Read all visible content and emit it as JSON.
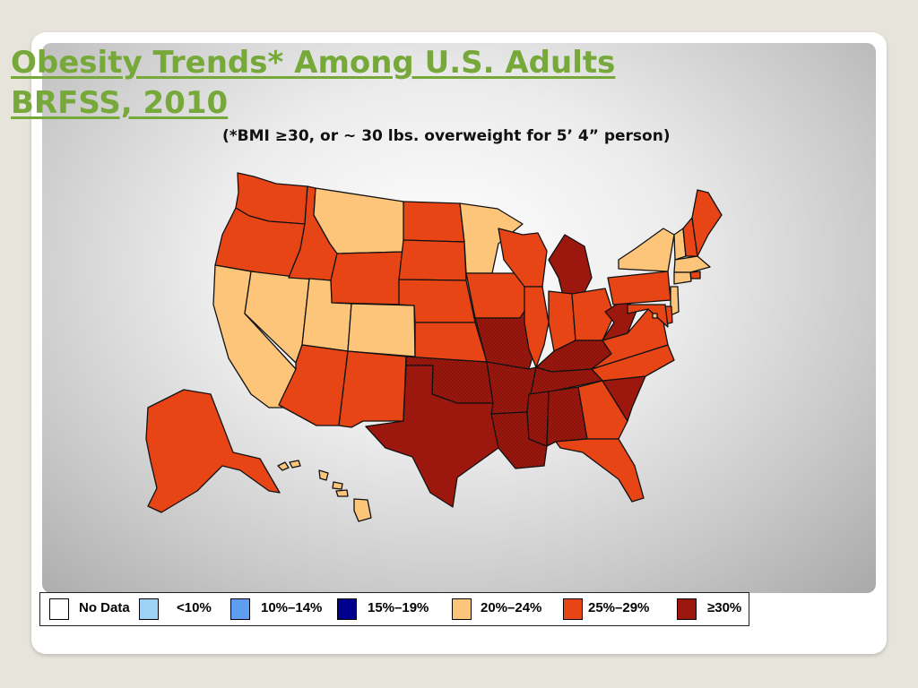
{
  "title": {
    "line1": "Obesity Trends* Among U.S. Adults",
    "line2": "BRFSS, 2010"
  },
  "subtitle": "(*BMI ≥30, or ~ 30 lbs. overweight for 5’ 4” person)",
  "legend": [
    {
      "label": "No Data",
      "color": "#ffffff"
    },
    {
      "label": "<10%",
      "color": "#9dd2f5"
    },
    {
      "label": "10%–14%",
      "color": "#5d9ef0"
    },
    {
      "label": "15%–19%",
      "color": "#00008f"
    },
    {
      "label": "20%–24%",
      "color": "#fdc57a"
    },
    {
      "label": "25%–29%",
      "color": "#e84516"
    },
    {
      "label": "≥30%",
      "color": "#9c180e"
    }
  ],
  "colors": {
    "title": "#76a83a",
    "border": "#111111"
  },
  "map": {
    "states": {
      "AL": "≥30%",
      "AK": "25%–29%",
      "AZ": "25%–29%",
      "AR": "≥30%",
      "CA": "20%–24%",
      "CO": "20%–24%",
      "CT": "20%–24%",
      "DE": "25%–29%",
      "DC": "20%–24%",
      "FL": "25%–29%",
      "GA": "25%–29%",
      "HI": "20%–24%",
      "ID": "25%–29%",
      "IL": "25%–29%",
      "IN": "25%–29%",
      "IA": "25%–29%",
      "KS": "25%–29%",
      "KY": "≥30%",
      "LA": "≥30%",
      "ME": "25%–29%",
      "MD": "25%–29%",
      "MA": "20%–24%",
      "MI": "≥30%",
      "MN": "20%–24%",
      "MS": "≥30%",
      "MO": "≥30%",
      "MT": "20%–24%",
      "NE": "25%–29%",
      "NV": "20%–24%",
      "NH": "25%–29%",
      "NJ": "20%–24%",
      "NM": "25%–29%",
      "NY": "20%–24%",
      "NC": "25%–29%",
      "ND": "25%–29%",
      "OH": "25%–29%",
      "OK": "≥30%",
      "OR": "25%–29%",
      "PA": "25%–29%",
      "RI": "25%–29%",
      "SC": "≥30%",
      "SD": "25%–29%",
      "TN": "≥30%",
      "TX": "≥30%",
      "UT": "20%–24%",
      "VT": "20%–24%",
      "VA": "25%–29%",
      "WA": "25%–29%",
      "WV": "≥30%",
      "WI": "25%–29%",
      "WY": "25%–29%"
    }
  }
}
